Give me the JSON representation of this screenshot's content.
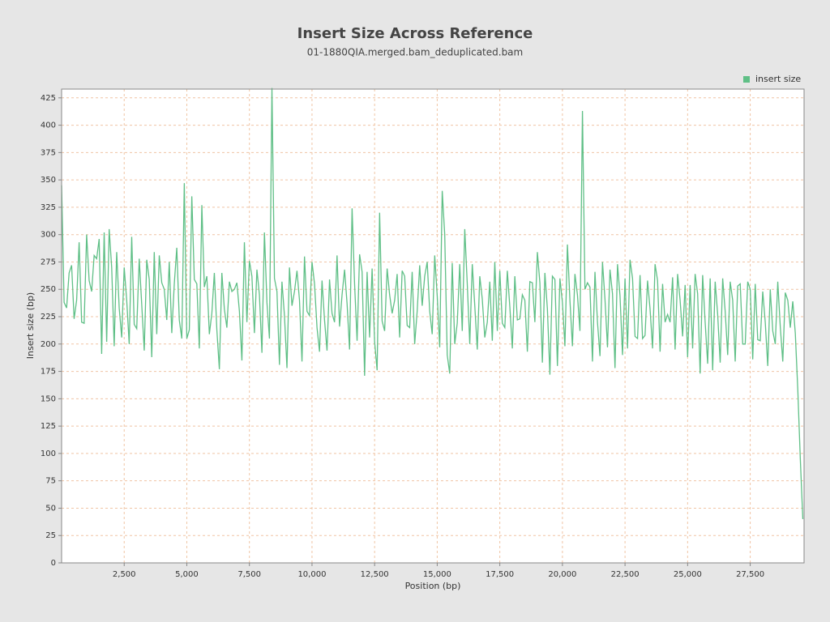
{
  "chart_data": {
    "type": "line",
    "title": "Insert Size Across Reference",
    "subtitle": "01-1880QIA.merged.bam_deduplicated.bam",
    "x_label": "Position (bp)",
    "y_label": "Insert size (bp)",
    "legend_position": "top-right",
    "grid": true,
    "xlim": [
      0,
      29650
    ],
    "ylim": [
      0,
      433
    ],
    "xticks": [
      {
        "value": 2500,
        "label": "2,500"
      },
      {
        "value": 5000,
        "label": "5,000"
      },
      {
        "value": 7500,
        "label": "7,500"
      },
      {
        "value": 10000,
        "label": "10,000"
      },
      {
        "value": 12500,
        "label": "12,500"
      },
      {
        "value": 15000,
        "label": "15,000"
      },
      {
        "value": 17500,
        "label": "17,500"
      },
      {
        "value": 20000,
        "label": "20,000"
      },
      {
        "value": 22500,
        "label": "22,500"
      },
      {
        "value": 25000,
        "label": "25,000"
      },
      {
        "value": 27500,
        "label": "27,500"
      }
    ],
    "yticks": [
      0,
      25,
      50,
      75,
      100,
      125,
      150,
      175,
      200,
      225,
      250,
      275,
      300,
      325,
      350,
      375,
      400,
      425
    ],
    "x": [
      0,
      100,
      200,
      300,
      400,
      500,
      600,
      700,
      800,
      900,
      1000,
      1100,
      1200,
      1300,
      1400,
      1500,
      1600,
      1700,
      1800,
      1900,
      2000,
      2100,
      2200,
      2300,
      2400,
      2500,
      2600,
      2700,
      2800,
      2900,
      3000,
      3100,
      3200,
      3300,
      3400,
      3500,
      3600,
      3700,
      3800,
      3900,
      4000,
      4100,
      4200,
      4300,
      4400,
      4500,
      4600,
      4700,
      4800,
      4900,
      5000,
      5100,
      5200,
      5300,
      5400,
      5500,
      5600,
      5700,
      5800,
      5900,
      6000,
      6100,
      6200,
      6300,
      6400,
      6500,
      6600,
      6700,
      6800,
      6900,
      7000,
      7100,
      7200,
      7300,
      7400,
      7500,
      7600,
      7700,
      7800,
      7900,
      8000,
      8100,
      8200,
      8300,
      8400,
      8500,
      8600,
      8700,
      8800,
      8900,
      9000,
      9100,
      9200,
      9300,
      9400,
      9500,
      9600,
      9700,
      9800,
      9900,
      10000,
      10100,
      10200,
      10300,
      10400,
      10500,
      10600,
      10700,
      10800,
      10900,
      11000,
      11100,
      11200,
      11300,
      11400,
      11500,
      11600,
      11700,
      11800,
      11900,
      12000,
      12100,
      12200,
      12300,
      12400,
      12500,
      12600,
      12700,
      12800,
      12900,
      13000,
      13100,
      13200,
      13300,
      13400,
      13500,
      13600,
      13700,
      13800,
      13900,
      14000,
      14100,
      14200,
      14300,
      14400,
      14500,
      14600,
      14700,
      14800,
      14900,
      15000,
      15100,
      15200,
      15300,
      15400,
      15500,
      15600,
      15700,
      15800,
      15900,
      16000,
      16100,
      16200,
      16300,
      16400,
      16500,
      16600,
      16700,
      16800,
      16900,
      17000,
      17100,
      17200,
      17300,
      17400,
      17500,
      17600,
      17700,
      17800,
      17900,
      18000,
      18100,
      18200,
      18300,
      18400,
      18500,
      18600,
      18700,
      18800,
      18900,
      19000,
      19100,
      19200,
      19300,
      19400,
      19500,
      19600,
      19700,
      19800,
      19900,
      20000,
      20100,
      20200,
      20300,
      20400,
      20500,
      20600,
      20700,
      20800,
      20900,
      21000,
      21100,
      21200,
      21300,
      21400,
      21500,
      21600,
      21700,
      21800,
      21900,
      22000,
      22100,
      22200,
      22300,
      22400,
      22500,
      22600,
      22700,
      22800,
      22900,
      23000,
      23100,
      23200,
      23300,
      23400,
      23500,
      23600,
      23700,
      23800,
      23900,
      24000,
      24100,
      24200,
      24300,
      24400,
      24500,
      24600,
      24700,
      24800,
      24900,
      25000,
      25100,
      25200,
      25300,
      25400,
      25500,
      25600,
      25700,
      25800,
      25900,
      26000,
      26100,
      26200,
      26300,
      26400,
      26500,
      26600,
      26700,
      26800,
      26900,
      27000,
      27100,
      27200,
      27300,
      27400,
      27500,
      27600,
      27700,
      27800,
      27900,
      28000,
      28100,
      28200,
      28300,
      28400,
      28500,
      28600,
      28700,
      28800,
      28900,
      29000,
      29100,
      29200,
      29300,
      29400,
      29500,
      29600
    ],
    "series": [
      {
        "name": "insert size",
        "color": "#5fbf86",
        "values": [
          345,
          238,
          233,
          265,
          272,
          223,
          240,
          293,
          220,
          219,
          300,
          258,
          248,
          281,
          278,
          296,
          191,
          302,
          202,
          305,
          270,
          198,
          284,
          233,
          206,
          270,
          240,
          200,
          298,
          218,
          214,
          278,
          236,
          194,
          277,
          259,
          188,
          284,
          209,
          281,
          256,
          250,
          222,
          275,
          210,
          255,
          288,
          222,
          205,
          347,
          205,
          213,
          335,
          259,
          255,
          196,
          327,
          252,
          262,
          209,
          228,
          265,
          213,
          177,
          265,
          232,
          215,
          257,
          248,
          250,
          256,
          230,
          185,
          293,
          220,
          276,
          262,
          210,
          268,
          245,
          192,
          302,
          238,
          205,
          434,
          260,
          248,
          181,
          257,
          226,
          178,
          270,
          235,
          248,
          267,
          240,
          184,
          280,
          230,
          226,
          275,
          255,
          215,
          193,
          258,
          222,
          194,
          259,
          228,
          220,
          281,
          216,
          245,
          268,
          237,
          195,
          324,
          255,
          203,
          282,
          266,
          171,
          266,
          206,
          269,
          202,
          176,
          320,
          221,
          212,
          269,
          245,
          228,
          240,
          264,
          206,
          267,
          262,
          217,
          215,
          266,
          200,
          230,
          272,
          235,
          262,
          275,
          230,
          209,
          281,
          244,
          197,
          340,
          300,
          190,
          173,
          274,
          200,
          219,
          273,
          212,
          305,
          255,
          200,
          273,
          235,
          195,
          262,
          241,
          206,
          220,
          257,
          203,
          275,
          212,
          267,
          219,
          215,
          267,
          234,
          196,
          262,
          222,
          223,
          245,
          240,
          193,
          257,
          256,
          220,
          284,
          256,
          183,
          265,
          232,
          172,
          262,
          259,
          180,
          260,
          238,
          198,
          291,
          240,
          198,
          264,
          245,
          212,
          413,
          250,
          256,
          252,
          184,
          266,
          220,
          189,
          275,
          241,
          197,
          268,
          246,
          178,
          273,
          244,
          190,
          260,
          196,
          277,
          260,
          207,
          205,
          263,
          205,
          208,
          258,
          232,
          196,
          273,
          258,
          193,
          255,
          220,
          227,
          220,
          261,
          195,
          264,
          240,
          207,
          254,
          188,
          254,
          196,
          264,
          246,
          173,
          263,
          220,
          182,
          260,
          176,
          257,
          227,
          183,
          260,
          230,
          190,
          257,
          240,
          184,
          253,
          255,
          200,
          200,
          257,
          250,
          186,
          255,
          204,
          203,
          248,
          220,
          180,
          250,
          212,
          200,
          257,
          216,
          184,
          247,
          240,
          215,
          239,
          210,
          158,
          95,
          40
        ]
      }
    ]
  }
}
